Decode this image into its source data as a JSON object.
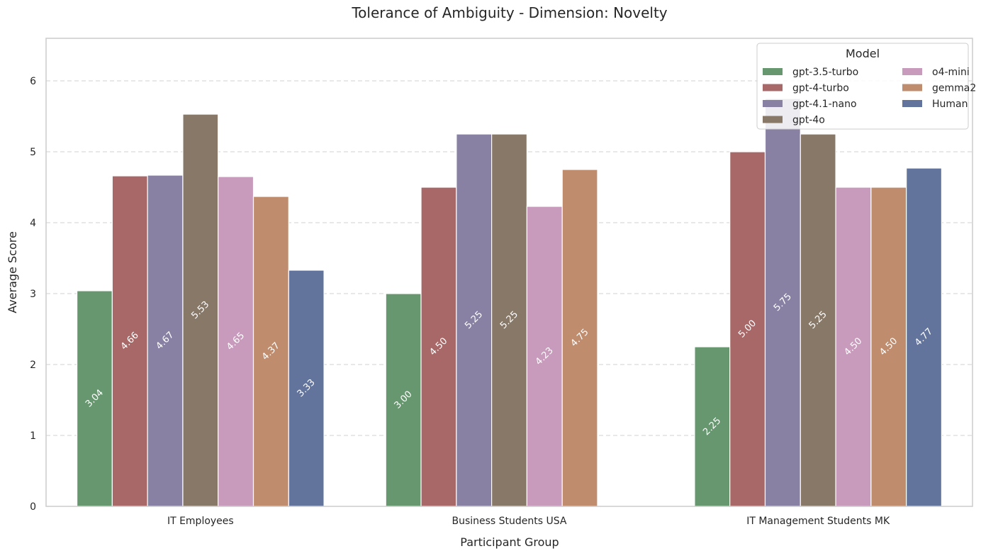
{
  "chart_data": {
    "type": "bar",
    "title": "Tolerance of Ambiguity - Dimension: Novelty",
    "xlabel": "Participant Group",
    "ylabel": "Average Score",
    "ylim": [
      0,
      6.6
    ],
    "yticks": [
      0,
      1,
      2,
      3,
      4,
      5,
      6
    ],
    "grid": "horizontal dashed",
    "categories": [
      "IT Employees",
      "Business Students USA",
      "IT Management Students MK"
    ],
    "legend": {
      "title": "Model",
      "position": "top-right"
    },
    "series": [
      {
        "name": "gpt-3.5-turbo",
        "color": "#66976F",
        "values": [
          3.04,
          3.0,
          2.25
        ],
        "labels": [
          "3.04",
          "3.00",
          "2.25"
        ]
      },
      {
        "name": "gpt-4-turbo",
        "color": "#A96868",
        "values": [
          4.66,
          4.5,
          5.0
        ],
        "labels": [
          "4.66",
          "4.50",
          "5.00"
        ]
      },
      {
        "name": "gpt-4.1-nano",
        "color": "#8881A3",
        "values": [
          4.67,
          5.25,
          5.75
        ],
        "labels": [
          "4.67",
          "5.25",
          "5.75"
        ]
      },
      {
        "name": "gpt-4o",
        "color": "#877868",
        "values": [
          5.53,
          5.25,
          5.25
        ],
        "labels": [
          "5.53",
          "5.25",
          "5.25"
        ]
      },
      {
        "name": "o4-mini",
        "color": "#C89ABC",
        "values": [
          4.65,
          4.23,
          4.5
        ],
        "labels": [
          "4.65",
          "4.23",
          "4.50"
        ]
      },
      {
        "name": "gemma2",
        "color": "#BF8C6E",
        "values": [
          4.37,
          4.75,
          4.5
        ],
        "labels": [
          "4.37",
          "4.75",
          "4.50"
        ]
      },
      {
        "name": "Human",
        "color": "#62749C",
        "values": [
          3.33,
          null,
          4.77
        ],
        "labels": [
          "3.33",
          null,
          "4.77"
        ]
      }
    ]
  }
}
